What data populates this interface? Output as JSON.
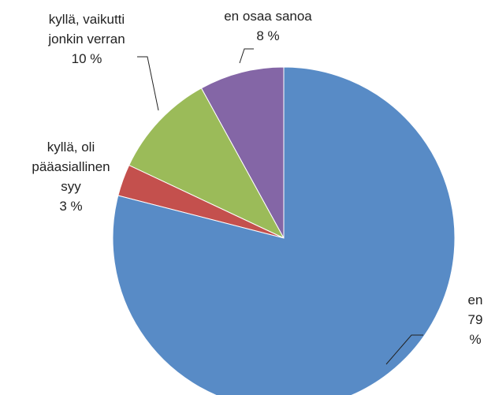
{
  "chart_data": {
    "type": "pie",
    "categories": [
      "en",
      "kyllä, oli\npääasiallinen\nsyy",
      "kyllä, vaikutti\njonkin verran",
      "en osaa sanoa"
    ],
    "values": [
      79,
      3,
      10,
      8
    ],
    "value_labels": [
      "79 %",
      "3 %",
      "10 %",
      "8 %"
    ],
    "colors": [
      "#588bc6",
      "#c4504d",
      "#9bbb59",
      "#8466a6"
    ]
  }
}
